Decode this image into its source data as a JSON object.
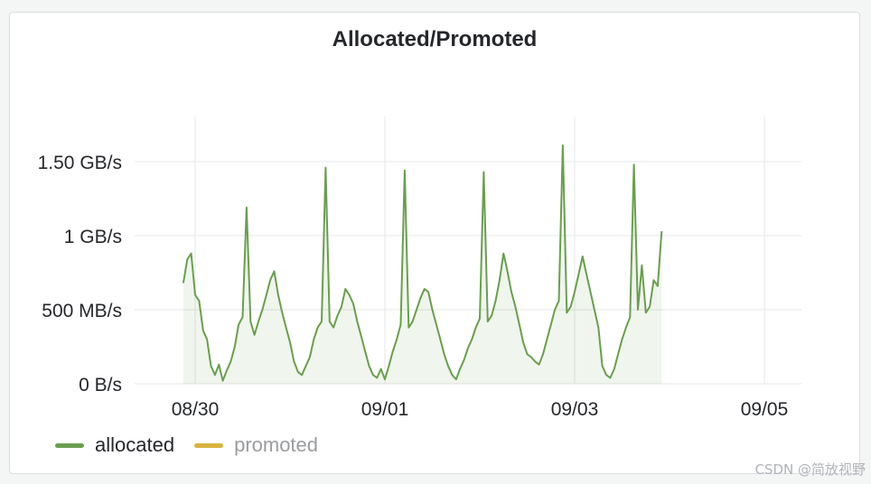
{
  "panel": {
    "title": "Allocated/Promoted"
  },
  "chart_data": {
    "type": "area",
    "title": "Allocated/Promoted",
    "x_ticks": [
      "08/30",
      "09/01",
      "09/03",
      "09/05"
    ],
    "y_ticks": [
      "0 B/s",
      "500 MB/s",
      "1 GB/s",
      "1.50 GB/s"
    ],
    "y_tick_values": [
      0,
      500,
      1000,
      1500
    ],
    "y_unit": "MB/s",
    "ylim": [
      0,
      1500
    ],
    "xlim_days": [
      "2024-08-29T08:00",
      "2024-09-05"
    ],
    "grid": true,
    "legend_position": "bottom-left",
    "series": [
      {
        "name": "allocated",
        "color": "#6a9e50",
        "fill": "#6a9e50",
        "points": [
          [
            "08/29 21:00",
            680
          ],
          [
            "08/29 22:00",
            840
          ],
          [
            "08/29 23:00",
            880
          ],
          [
            "08/30 00:00",
            600
          ],
          [
            "08/30 01:00",
            560
          ],
          [
            "08/30 02:00",
            360
          ],
          [
            "08/30 03:00",
            300
          ],
          [
            "08/30 04:00",
            120
          ],
          [
            "08/30 05:00",
            60
          ],
          [
            "08/30 06:00",
            130
          ],
          [
            "08/30 07:00",
            20
          ],
          [
            "08/30 08:00",
            90
          ],
          [
            "08/30 09:00",
            150
          ],
          [
            "08/30 10:00",
            250
          ],
          [
            "08/30 11:00",
            400
          ],
          [
            "08/30 12:00",
            450
          ],
          [
            "08/30 13:00",
            1190
          ],
          [
            "08/30 14:00",
            420
          ],
          [
            "08/30 15:00",
            330
          ],
          [
            "08/30 16:00",
            420
          ],
          [
            "08/30 17:00",
            500
          ],
          [
            "08/30 18:00",
            600
          ],
          [
            "08/30 19:00",
            700
          ],
          [
            "08/30 20:00",
            760
          ],
          [
            "08/30 21:00",
            600
          ],
          [
            "08/30 22:00",
            480
          ],
          [
            "08/30 23:00",
            380
          ],
          [
            "08/31 00:00",
            280
          ],
          [
            "08/31 01:00",
            150
          ],
          [
            "08/31 02:00",
            80
          ],
          [
            "08/31 03:00",
            60
          ],
          [
            "08/31 04:00",
            120
          ],
          [
            "08/31 05:00",
            180
          ],
          [
            "08/31 06:00",
            300
          ],
          [
            "08/31 07:00",
            380
          ],
          [
            "08/31 08:00",
            420
          ],
          [
            "08/31 09:00",
            1460
          ],
          [
            "08/31 10:00",
            420
          ],
          [
            "08/31 11:00",
            380
          ],
          [
            "08/31 12:00",
            460
          ],
          [
            "08/31 13:00",
            520
          ],
          [
            "08/31 14:00",
            640
          ],
          [
            "08/31 15:00",
            600
          ],
          [
            "08/31 16:00",
            540
          ],
          [
            "08/31 17:00",
            420
          ],
          [
            "08/31 18:00",
            320
          ],
          [
            "08/31 19:00",
            220
          ],
          [
            "08/31 20:00",
            120
          ],
          [
            "08/31 21:00",
            60
          ],
          [
            "08/31 22:00",
            40
          ],
          [
            "08/31 23:00",
            100
          ],
          [
            "09/01 00:00",
            30
          ],
          [
            "09/01 01:00",
            120
          ],
          [
            "09/01 02:00",
            220
          ],
          [
            "09/01 03:00",
            300
          ],
          [
            "09/01 04:00",
            400
          ],
          [
            "09/01 05:00",
            1440
          ],
          [
            "09/01 06:00",
            380
          ],
          [
            "09/01 07:00",
            420
          ],
          [
            "09/01 08:00",
            500
          ],
          [
            "09/01 09:00",
            580
          ],
          [
            "09/01 10:00",
            640
          ],
          [
            "09/01 11:00",
            620
          ],
          [
            "09/01 12:00",
            500
          ],
          [
            "09/01 13:00",
            400
          ],
          [
            "09/01 14:00",
            300
          ],
          [
            "09/01 15:00",
            200
          ],
          [
            "09/01 16:00",
            120
          ],
          [
            "09/01 17:00",
            60
          ],
          [
            "09/01 18:00",
            30
          ],
          [
            "09/01 19:00",
            100
          ],
          [
            "09/01 20:00",
            160
          ],
          [
            "09/01 21:00",
            240
          ],
          [
            "09/01 22:00",
            300
          ],
          [
            "09/01 23:00",
            380
          ],
          [
            "09/02 00:00",
            440
          ],
          [
            "09/02 01:00",
            1430
          ],
          [
            "09/02 02:00",
            420
          ],
          [
            "09/02 03:00",
            460
          ],
          [
            "09/02 04:00",
            560
          ],
          [
            "09/02 05:00",
            700
          ],
          [
            "09/02 06:00",
            880
          ],
          [
            "09/02 07:00",
            760
          ],
          [
            "09/02 08:00",
            620
          ],
          [
            "09/02 09:00",
            520
          ],
          [
            "09/02 10:00",
            400
          ],
          [
            "09/02 11:00",
            280
          ],
          [
            "09/02 12:00",
            200
          ],
          [
            "09/02 13:00",
            180
          ],
          [
            "09/02 14:00",
            150
          ],
          [
            "09/02 15:00",
            130
          ],
          [
            "09/02 16:00",
            200
          ],
          [
            "09/02 17:00",
            300
          ],
          [
            "09/02 18:00",
            400
          ],
          [
            "09/02 19:00",
            500
          ],
          [
            "09/02 20:00",
            560
          ],
          [
            "09/02 21:00",
            1610
          ],
          [
            "09/02 22:00",
            480
          ],
          [
            "09/02 23:00",
            520
          ],
          [
            "09/03 00:00",
            620
          ],
          [
            "09/03 01:00",
            740
          ],
          [
            "09/03 02:00",
            860
          ],
          [
            "09/03 03:00",
            740
          ],
          [
            "09/03 04:00",
            620
          ],
          [
            "09/03 05:00",
            500
          ],
          [
            "09/03 06:00",
            380
          ],
          [
            "09/03 07:00",
            120
          ],
          [
            "09/03 08:00",
            60
          ],
          [
            "09/03 09:00",
            40
          ],
          [
            "09/03 10:00",
            100
          ],
          [
            "09/03 11:00",
            200
          ],
          [
            "09/03 12:00",
            300
          ],
          [
            "09/03 13:00",
            380
          ],
          [
            "09/03 14:00",
            450
          ],
          [
            "09/03 15:00",
            1480
          ],
          [
            "09/03 16:00",
            500
          ],
          [
            "09/03 17:00",
            800
          ],
          [
            "09/03 18:00",
            480
          ],
          [
            "09/03 19:00",
            520
          ],
          [
            "09/03 20:00",
            700
          ],
          [
            "09/03 21:00",
            660
          ],
          [
            "09/03 22:00",
            1030
          ]
        ]
      },
      {
        "name": "promoted",
        "color": "#d8b33c",
        "points": []
      }
    ]
  },
  "legend": {
    "items": [
      {
        "label": "allocated",
        "color": "#6a9e50"
      },
      {
        "label": "promoted",
        "color": "#d8b33c"
      }
    ]
  },
  "watermark": "CSDN @简放视野"
}
